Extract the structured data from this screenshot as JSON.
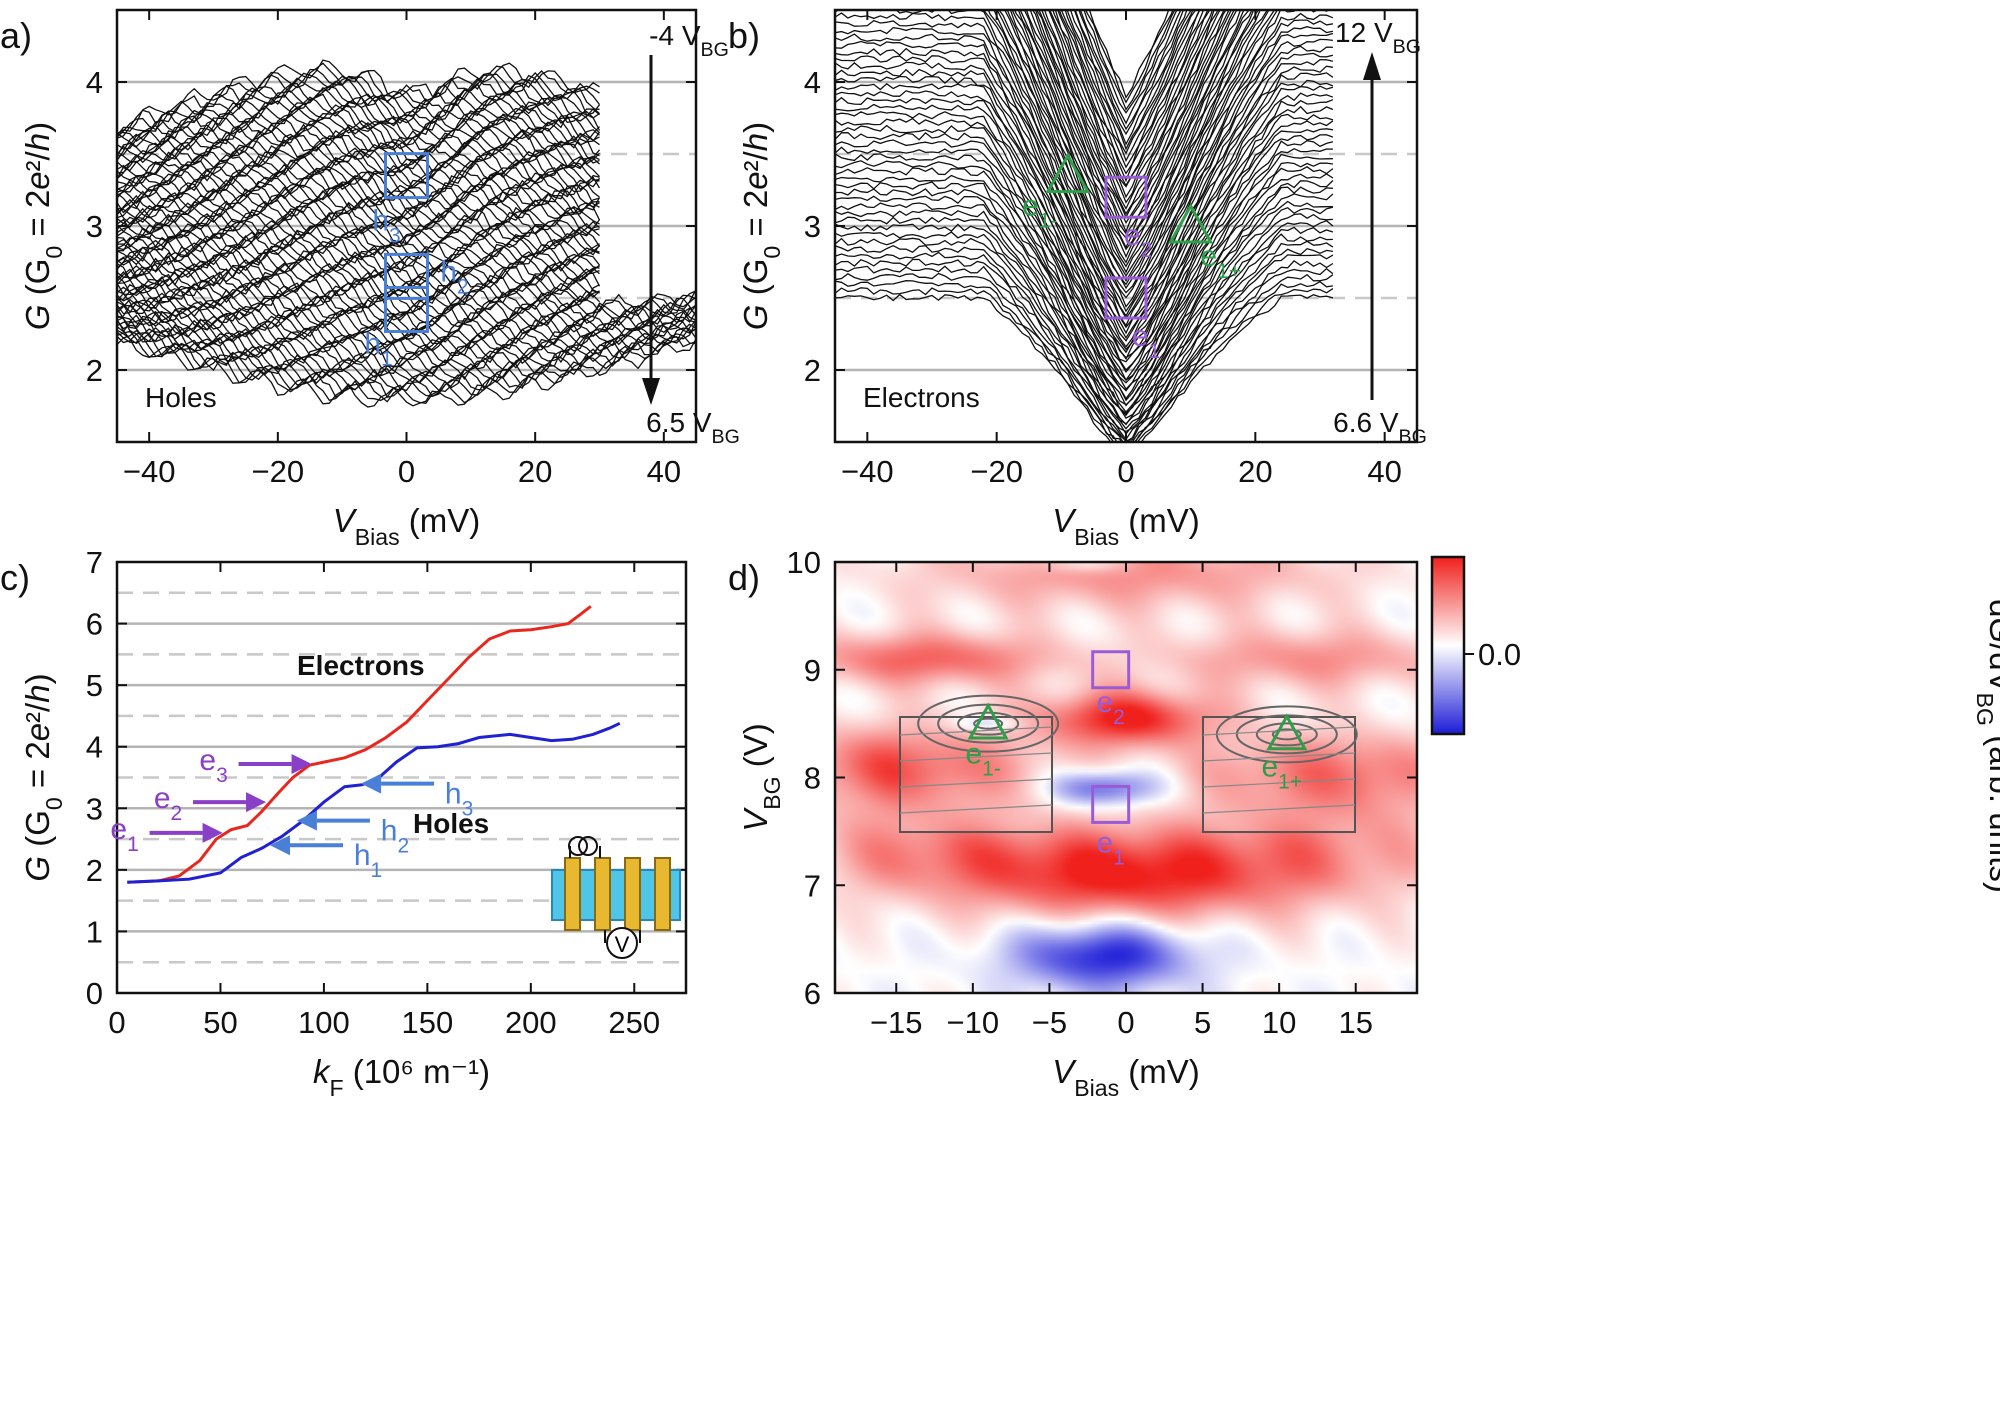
{
  "chart_data": [
    {
      "panel": "a)",
      "type": "line",
      "title": "Holes",
      "xlabel": {
        "main": "V",
        "sub": "Bias",
        "unit": " (mV)"
      },
      "ylabel": {
        "main": "G (G",
        "sub": "0",
        "rest": " = 2e²/h)"
      },
      "xlim": [
        -45,
        45
      ],
      "ylim": [
        1.5,
        4.5
      ],
      "xticks": [
        -40,
        -20,
        0,
        20,
        40
      ],
      "yticks": [
        2,
        3,
        4
      ],
      "gridlines_solid": [
        2,
        3,
        4
      ],
      "gridlines_dashed": [
        2.5,
        3.5
      ],
      "series_count": 80,
      "arrow_start_label": {
        "main": "-4 V",
        "sub": "BG"
      },
      "arrow_end_label": {
        "main": "6.5 V",
        "sub": "BG"
      },
      "markers": [
        {
          "label": "h",
          "sub": "3",
          "x": 0,
          "y": 3.35,
          "color": "#4a7fd8"
        },
        {
          "label": "h",
          "sub": "2",
          "x": 0,
          "y": 2.65,
          "color": "#4a7fd8"
        },
        {
          "label": "h",
          "sub": "1",
          "x": 0,
          "y": 2.42,
          "color": "#4a7fd8"
        }
      ]
    },
    {
      "panel": "b)",
      "type": "line",
      "title": "Electrons",
      "xlabel": {
        "main": "V",
        "sub": "Bias",
        "unit": " (mV)"
      },
      "ylabel": {
        "main": "G (G",
        "sub": "0",
        "rest": " = 2e²/h)"
      },
      "xlim": [
        -45,
        45
      ],
      "ylim": [
        1.5,
        4.5
      ],
      "xticks": [
        -40,
        -20,
        0,
        20,
        40
      ],
      "yticks": [
        2,
        3,
        4
      ],
      "gridlines_solid": [
        2,
        3,
        4
      ],
      "gridlines_dashed": [
        2.5,
        3.5
      ],
      "series_count": 80,
      "arrow_start_label": {
        "main": "6.6 V",
        "sub": "BG"
      },
      "arrow_end_label": {
        "main": "12 V",
        "sub": "BG"
      },
      "markers": [
        {
          "label": "e",
          "sub": "1-",
          "x": -9,
          "y": 3.35,
          "shape": "triangle",
          "color": "#2f9e4a"
        },
        {
          "label": "e",
          "sub": "2",
          "x": 0,
          "y": 3.2,
          "shape": "square",
          "color": "#9a5cd6"
        },
        {
          "label": "e",
          "sub": "1+",
          "x": 10,
          "y": 3.0,
          "shape": "triangle",
          "color": "#2f9e4a"
        },
        {
          "label": "e",
          "sub": "1",
          "x": 0,
          "y": 2.5,
          "shape": "square",
          "color": "#9a5cd6"
        }
      ]
    },
    {
      "panel": "c)",
      "type": "line",
      "xlabel": {
        "main": "k",
        "sub": "F",
        "unit": " (10⁶ m⁻¹)"
      },
      "ylabel": {
        "main": "G (G",
        "sub": "0",
        "rest": " = 2e²/h)"
      },
      "xlim": [
        0,
        275
      ],
      "ylim": [
        0,
        7
      ],
      "xticks": [
        0,
        50,
        100,
        150,
        200,
        250
      ],
      "yticks": [
        0,
        1,
        2,
        3,
        4,
        5,
        6,
        7
      ],
      "gridlines_solid": [
        1,
        2,
        3,
        4,
        5,
        6
      ],
      "gridlines_dashed": [
        0.5,
        1.5,
        2.5,
        3.5,
        4.5,
        5.5,
        6.5
      ],
      "series": [
        {
          "name": "Electrons",
          "color": "#e8281e",
          "x": [
            5,
            20,
            30,
            40,
            48,
            55,
            63,
            70,
            78,
            85,
            93,
            100,
            110,
            120,
            130,
            140,
            150,
            160,
            170,
            180,
            190,
            200,
            210,
            218,
            224,
            229
          ],
          "y": [
            1.8,
            1.82,
            1.9,
            2.15,
            2.5,
            2.65,
            2.72,
            2.95,
            3.25,
            3.5,
            3.7,
            3.75,
            3.82,
            3.95,
            4.15,
            4.4,
            4.75,
            5.1,
            5.45,
            5.75,
            5.88,
            5.9,
            5.95,
            6.0,
            6.15,
            6.28
          ]
        },
        {
          "name": "Holes",
          "color": "#2121d4",
          "x": [
            5,
            20,
            35,
            50,
            60,
            70,
            80,
            90,
            100,
            110,
            118,
            125,
            135,
            145,
            155,
            165,
            175,
            190,
            200,
            210,
            220,
            230,
            238,
            243
          ],
          "y": [
            1.8,
            1.82,
            1.85,
            1.95,
            2.2,
            2.35,
            2.55,
            2.8,
            3.1,
            3.35,
            3.38,
            3.45,
            3.75,
            3.98,
            4.0,
            4.05,
            4.15,
            4.2,
            4.15,
            4.1,
            4.12,
            4.2,
            4.3,
            4.38
          ]
        }
      ],
      "series_labels": [
        {
          "text": "Electrons",
          "color": "#e8281e"
        },
        {
          "text": "Holes",
          "color": "#2121d4"
        }
      ],
      "arrows": [
        {
          "label": "e",
          "sub": "3",
          "x": 95,
          "y": 3.72,
          "side": "left",
          "color": "#8a3fc8"
        },
        {
          "label": "e",
          "sub": "2",
          "x": 73,
          "y": 3.1,
          "side": "left",
          "color": "#8a3fc8"
        },
        {
          "label": "e",
          "sub": "1",
          "x": 52,
          "y": 2.6,
          "side": "left",
          "color": "#8a3fc8"
        },
        {
          "label": "h",
          "sub": "3",
          "x": 117,
          "y": 3.4,
          "side": "right",
          "color": "#4a7fd8"
        },
        {
          "label": "h",
          "sub": "2",
          "x": 86,
          "y": 2.8,
          "side": "right",
          "color": "#4a7fd8"
        },
        {
          "label": "h",
          "sub": "1",
          "x": 73,
          "y": 2.4,
          "side": "right",
          "color": "#4a7fd8"
        }
      ],
      "inset": {
        "description": "device schematic",
        "meter_label": "V"
      }
    },
    {
      "panel": "d)",
      "type": "heatmap",
      "xlabel": {
        "main": "V",
        "sub": "Bias",
        "unit": " (mV)"
      },
      "ylabel": {
        "main": "V",
        "sub": "BG",
        "unit": " (V)"
      },
      "xlim": [
        -19,
        19
      ],
      "ylim": [
        6,
        10
      ],
      "xticks": [
        -15,
        -10,
        -5,
        0,
        5,
        10,
        15
      ],
      "yticks": [
        6,
        7,
        8,
        9,
        10
      ],
      "colorbar": {
        "label_pre": "dG/dV",
        "label_sub": "BG",
        "label_post": " (arb. units)",
        "tick": "0.0",
        "low": "#1c1cd8",
        "mid": "#ffffff",
        "high": "#f0201c"
      },
      "bands": [
        {
          "center_x": -13,
          "center_y": 9.1,
          "amp": 0.7,
          "sx": 6,
          "sy": 0.18
        },
        {
          "center_x": 12,
          "center_y": 9.1,
          "amp": 0.5,
          "sx": 7,
          "sy": 0.2
        },
        {
          "center_x": 0,
          "center_y": 8.55,
          "amp": 1.0,
          "sx": 4,
          "sy": 0.18
        },
        {
          "center_x": -14,
          "center_y": 8.1,
          "amp": 0.8,
          "sx": 6,
          "sy": 0.28
        },
        {
          "center_x": 13,
          "center_y": 8.05,
          "amp": 0.7,
          "sx": 6,
          "sy": 0.28
        },
        {
          "center_x": 0,
          "center_y": 7.1,
          "amp": 1.0,
          "sx": 7,
          "sy": 0.3
        },
        {
          "center_x": -13,
          "center_y": 7.3,
          "amp": 0.5,
          "sx": 6,
          "sy": 0.3
        },
        {
          "center_x": 13,
          "center_y": 7.3,
          "amp": 0.45,
          "sx": 6,
          "sy": 0.35
        },
        {
          "center_x": 0,
          "center_y": 9.9,
          "amp": 0.5,
          "sx": 10,
          "sy": 0.25
        },
        {
          "center_x": -1.5,
          "center_y": 7.9,
          "amp": -0.8,
          "sx": 2.5,
          "sy": 0.12
        },
        {
          "center_x": -1.5,
          "center_y": 6.35,
          "amp": -1.0,
          "sx": 4,
          "sy": 0.22
        },
        {
          "center_x": -9,
          "center_y": 8.5,
          "amp": -0.4,
          "sx": 1.5,
          "sy": 0.05
        },
        {
          "center_x": -3,
          "center_y": 9.98,
          "amp": -0.3,
          "sx": 2,
          "sy": 0.06
        }
      ],
      "markers": [
        {
          "label": "e",
          "sub": "2",
          "x": -1,
          "y": 9.0,
          "shape": "square",
          "color": "#9a5cd6"
        },
        {
          "label": "e",
          "sub": "1",
          "x": -1,
          "y": 7.75,
          "shape": "square",
          "color": "#9a5cd6"
        },
        {
          "label": "e",
          "sub": "1-",
          "x": -9,
          "y": 8.5,
          "shape": "triangle",
          "color": "#2f9e4a"
        },
        {
          "label": "e",
          "sub": "1+",
          "x": 10.5,
          "y": 8.4,
          "shape": "triangle",
          "color": "#2f9e4a"
        }
      ]
    }
  ]
}
